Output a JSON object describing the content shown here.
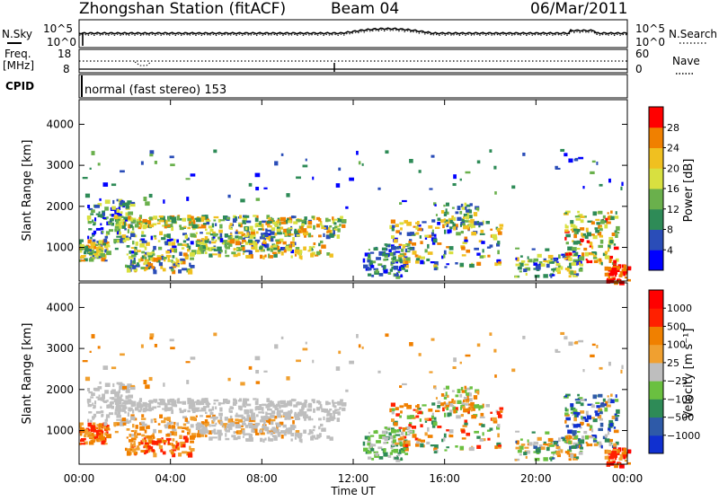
{
  "header": {
    "title": "Zhongshan Station (fitACF)",
    "beam": "Beam 04",
    "date": "06/Mar/2011"
  },
  "noise_panel": {
    "left_label": "N.Sky",
    "right_label": "N.Search",
    "left_ticks": [
      "10^5",
      "10^0"
    ],
    "right_ticks": [
      "10^5",
      "10^0"
    ]
  },
  "freq_panel": {
    "left_label_line1": "Freq.",
    "left_label_line2": "[MHz]",
    "right_label": "Nave",
    "left_ticks": [
      "18",
      "8"
    ],
    "right_ticks": [
      "60",
      "0"
    ]
  },
  "cpid_panel": {
    "label": "CPID",
    "text": "normal (fast stereo) 153"
  },
  "x_axis": {
    "label": "Time UT",
    "ticks": [
      "00:00",
      "04:00",
      "08:00",
      "12:00",
      "16:00",
      "20:00",
      "00:00"
    ]
  },
  "chart_data": [
    {
      "type": "heatmap",
      "name": "Power",
      "ylabel": "Slant Range [km]",
      "ylim": [
        180,
        4600
      ],
      "yticks": [
        "4000",
        "3000",
        "2000",
        "1000"
      ],
      "x_range_hours": [
        0,
        24
      ],
      "colorbar": {
        "label": "Power [dB]",
        "ticks": [
          "28",
          "24",
          "20",
          "16",
          "12",
          "8",
          "4"
        ],
        "colors": [
          "#0000ff",
          "#2a4db8",
          "#2e8b57",
          "#6ab04c",
          "#d8e040",
          "#f0c020",
          "#f08000",
          "#ff0000"
        ]
      }
    },
    {
      "type": "heatmap",
      "name": "Velocity",
      "ylabel": "Slant Range [km]",
      "ylim": [
        180,
        4600
      ],
      "yticks": [
        "4000",
        "3000",
        "2000",
        "1000"
      ],
      "x_range_hours": [
        0,
        24
      ],
      "colorbar": {
        "label": "Velocity [m s⁻¹]",
        "ticks": [
          "1000",
          "500",
          "100",
          "25",
          "−25",
          "−100",
          "−500",
          "−1000"
        ],
        "colors": [
          "#1030d0",
          "#2e5aa8",
          "#2e8b57",
          "#6ac040",
          "#bebebe",
          "#f0a030",
          "#f08000",
          "#ff2000",
          "#ff0000"
        ]
      }
    }
  ]
}
